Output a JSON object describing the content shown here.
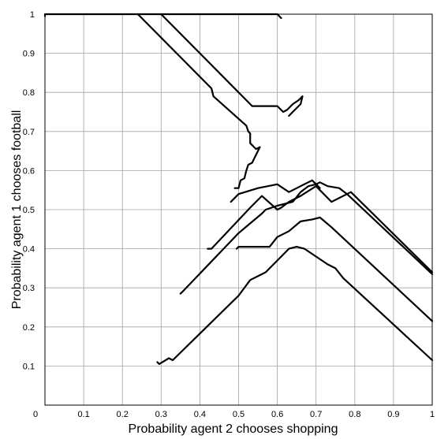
{
  "chart_data": {
    "type": "line",
    "xlabel": "Probability agent 2 chooses shopping",
    "ylabel": "Probability agent 1 chooses football",
    "xlim": [
      0,
      1
    ],
    "ylim": [
      0,
      1
    ],
    "grid": true,
    "xticks": [
      "0",
      "0.1",
      "0.2",
      "0.3",
      "0.4",
      "0.5",
      "0.6",
      "0.7",
      "0.8",
      "0.9",
      "1"
    ],
    "yticks": [
      "0.1",
      "0.2",
      "0.3",
      "0.4",
      "0.5",
      "0.6",
      "0.7",
      "0.8",
      "0.9",
      "1"
    ],
    "series": [
      {
        "points": [
          [
            0.0,
            0.995
          ],
          [
            0.0,
            1.0
          ],
          [
            0.6,
            1.0
          ],
          [
            0.61,
            0.99
          ]
        ]
      },
      {
        "points": [
          [
            0.24,
            1.0
          ],
          [
            0.43,
            0.81
          ],
          [
            0.435,
            0.79
          ],
          [
            0.52,
            0.715
          ],
          [
            0.525,
            0.7
          ],
          [
            0.53,
            0.695
          ],
          [
            0.53,
            0.67
          ],
          [
            0.545,
            0.655
          ],
          [
            0.555,
            0.66
          ],
          [
            0.54,
            0.63
          ],
          [
            0.535,
            0.62
          ],
          [
            0.525,
            0.615
          ],
          [
            0.52,
            0.6
          ],
          [
            0.515,
            0.58
          ],
          [
            0.505,
            0.575
          ],
          [
            0.5,
            0.555
          ],
          [
            0.49,
            0.555
          ]
        ]
      },
      {
        "points": [
          [
            0.3,
            1.0
          ],
          [
            0.535,
            0.765
          ],
          [
            0.6,
            0.765
          ],
          [
            0.615,
            0.75
          ],
          [
            0.625,
            0.755
          ],
          [
            0.64,
            0.77
          ],
          [
            0.655,
            0.78
          ],
          [
            0.665,
            0.79
          ],
          [
            0.66,
            0.77
          ],
          [
            0.65,
            0.76
          ],
          [
            0.64,
            0.75
          ],
          [
            0.63,
            0.74
          ]
        ]
      },
      {
        "points": [
          [
            0.42,
            0.4
          ],
          [
            0.43,
            0.4
          ],
          [
            0.53,
            0.505
          ],
          [
            0.56,
            0.535
          ],
          [
            0.6,
            0.5
          ],
          [
            0.61,
            0.505
          ],
          [
            0.63,
            0.52
          ],
          [
            0.66,
            0.535
          ],
          [
            0.7,
            0.56
          ],
          [
            0.72,
            0.54
          ],
          [
            0.74,
            0.52
          ],
          [
            0.78,
            0.54
          ],
          [
            1.0,
            0.335
          ]
        ]
      },
      {
        "points": [
          [
            0.35,
            0.285
          ],
          [
            0.355,
            0.29
          ],
          [
            0.5,
            0.44
          ],
          [
            0.53,
            0.465
          ],
          [
            0.56,
            0.49
          ],
          [
            0.57,
            0.5
          ],
          [
            0.6,
            0.51
          ],
          [
            0.64,
            0.52
          ],
          [
            0.66,
            0.545
          ],
          [
            0.68,
            0.56
          ],
          [
            0.7,
            0.565
          ],
          [
            0.71,
            0.57
          ],
          [
            0.73,
            0.56
          ],
          [
            0.76,
            0.555
          ],
          [
            0.78,
            0.54
          ],
          [
            0.79,
            0.545
          ],
          [
            1.0,
            0.34
          ]
        ]
      },
      {
        "points": [
          [
            0.495,
            0.4
          ],
          [
            0.5,
            0.405
          ],
          [
            0.53,
            0.405
          ],
          [
            0.58,
            0.405
          ],
          [
            0.6,
            0.43
          ],
          [
            0.63,
            0.445
          ],
          [
            0.66,
            0.47
          ],
          [
            0.69,
            0.475
          ],
          [
            0.71,
            0.48
          ],
          [
            0.74,
            0.455
          ],
          [
            1.0,
            0.215
          ]
        ]
      },
      {
        "points": [
          [
            0.29,
            0.11
          ],
          [
            0.295,
            0.105
          ],
          [
            0.32,
            0.12
          ],
          [
            0.33,
            0.115
          ],
          [
            0.5,
            0.28
          ],
          [
            0.53,
            0.32
          ],
          [
            0.57,
            0.34
          ],
          [
            0.63,
            0.4
          ],
          [
            0.65,
            0.405
          ],
          [
            0.67,
            0.4
          ],
          [
            0.7,
            0.38
          ],
          [
            0.73,
            0.36
          ],
          [
            0.75,
            0.35
          ],
          [
            0.77,
            0.325
          ],
          [
            1.0,
            0.115
          ]
        ]
      },
      {
        "points": [
          [
            0.48,
            0.52
          ],
          [
            0.5,
            0.54
          ],
          [
            0.55,
            0.555
          ],
          [
            0.6,
            0.565
          ],
          [
            0.63,
            0.545
          ],
          [
            0.66,
            0.56
          ],
          [
            0.69,
            0.575
          ],
          [
            0.71,
            0.555
          ]
        ]
      }
    ]
  }
}
